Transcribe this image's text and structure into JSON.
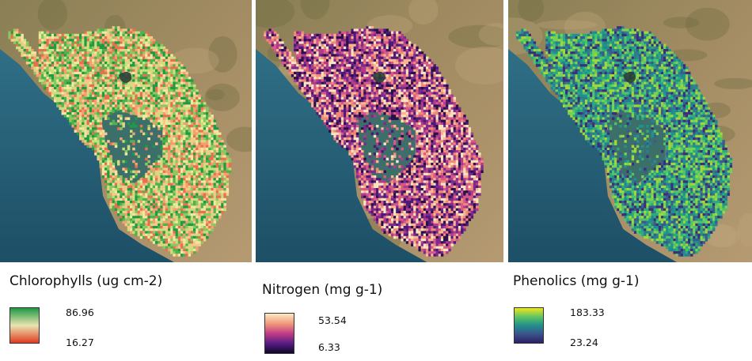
{
  "panels": [
    {
      "id": "chlorophylls",
      "legend_title": "Chlorophylls (ug cm-2)",
      "max_label": "86.96",
      "min_label": "16.27",
      "colormap": [
        "#1e9a45",
        "#e8e4b0",
        "#e23b1f"
      ],
      "palette": [
        "#1f9a45",
        "#4fb24f",
        "#8cc860",
        "#c6e07a",
        "#f0e8a0",
        "#f6c98a",
        "#f2a070",
        "#e87050"
      ]
    },
    {
      "id": "nitrogen",
      "legend_title": "Nitrogen (mg g-1)",
      "max_label": "53.54",
      "min_label": "6.33",
      "colormap": [
        "#fde9c5",
        "#f29a7a",
        "#c33d85",
        "#5a1d87",
        "#10062a"
      ],
      "palette": [
        "#fbe3c0",
        "#f7b590",
        "#ef8a78",
        "#d55a86",
        "#b13c8c",
        "#7e2a8c",
        "#4c1a78",
        "#2a0f4a"
      ]
    },
    {
      "id": "phenolics",
      "legend_title": "Phenolics (mg g-1)",
      "max_label": "183.33",
      "min_label": "23.24",
      "colormap": [
        "#f1e51d",
        "#60c462",
        "#21908c",
        "#3b528b",
        "#2c1f63"
      ],
      "palette": [
        "#7ad151",
        "#4ec36b",
        "#2aab7f",
        "#20928c",
        "#2c7e8e",
        "#3b5b8c",
        "#3b2f7a",
        "#9fd83a"
      ]
    }
  ]
}
